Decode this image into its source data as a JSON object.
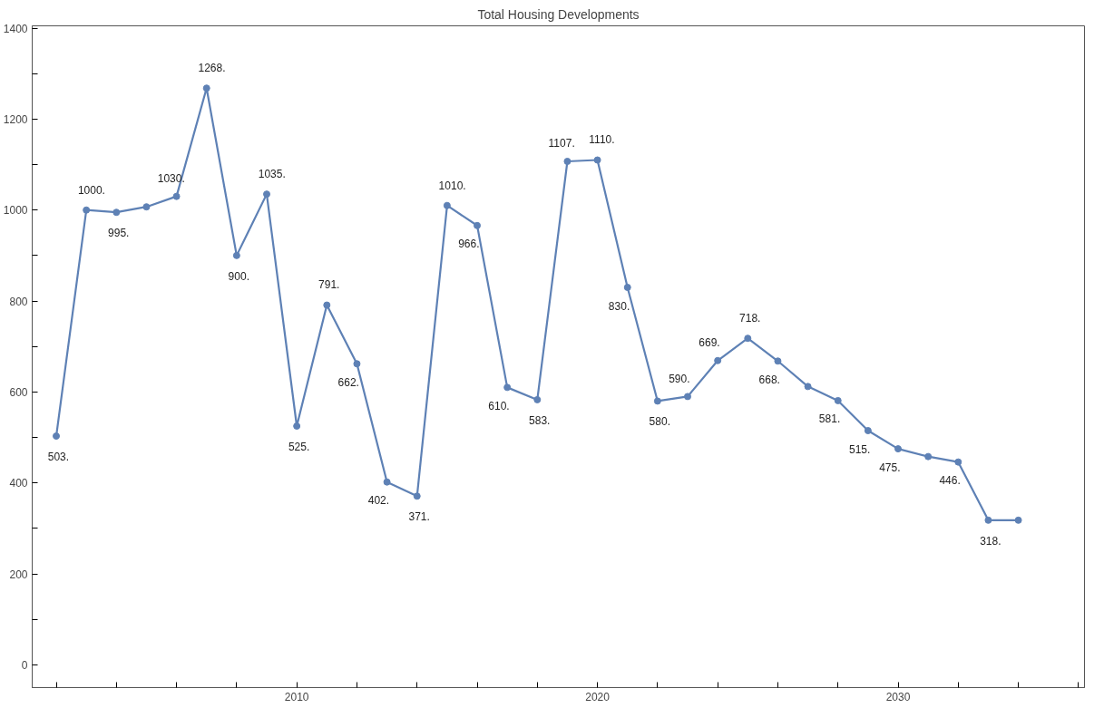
{
  "chart_data": {
    "type": "line",
    "title": "Total Housing Developments",
    "x": [
      2002,
      2003,
      2004,
      2005,
      2006,
      2007,
      2008,
      2009,
      2010,
      2011,
      2012,
      2013,
      2014,
      2015,
      2016,
      2017,
      2018,
      2019,
      2020,
      2021,
      2022,
      2023,
      2024,
      2025,
      2026,
      2027,
      2028,
      2029,
      2030,
      2031,
      2032,
      2033,
      2034
    ],
    "series": [
      {
        "color": "#5e81b5",
        "values": [
          503,
          1000,
          995,
          1007,
          1030,
          1268,
          900,
          1035,
          525,
          791,
          662,
          402,
          371,
          1010,
          966,
          610,
          583,
          1107,
          1110,
          830,
          580,
          590,
          669,
          718,
          668,
          612,
          581,
          515,
          475,
          458,
          446,
          318,
          318
        ],
        "value_labels": [
          "503.",
          "1000.",
          "995.",
          null,
          "1030.",
          "1268.",
          "900.",
          "1035.",
          "525.",
          "791.",
          "662.",
          "402.",
          "371.",
          "1010.",
          "966.",
          "610.",
          "583.",
          "1107.",
          "1110.",
          "830.",
          "580.",
          "590.",
          "669.",
          "718.",
          "668.",
          null,
          "581.",
          "515.",
          "475.",
          null,
          "446.",
          "318.",
          null
        ]
      }
    ],
    "xlim": [
      2001.2,
      2036.2
    ],
    "ylim": [
      -50,
      1405
    ],
    "xticks": [
      {
        "value": 2002,
        "label": null
      },
      {
        "value": 2004,
        "label": null
      },
      {
        "value": 2006,
        "label": null
      },
      {
        "value": 2008,
        "label": null
      },
      2010,
      {
        "value": 2012,
        "label": null
      },
      {
        "value": 2014,
        "label": null
      },
      {
        "value": 2016,
        "label": null
      },
      {
        "value": 2018,
        "label": null
      },
      2020,
      {
        "value": 2022,
        "label": null
      },
      {
        "value": 2024,
        "label": null
      },
      {
        "value": 2026,
        "label": null
      },
      {
        "value": 2028,
        "label": null
      },
      2030,
      {
        "value": 2032,
        "label": null
      },
      {
        "value": 2034,
        "label": null
      },
      {
        "value": 2036,
        "label": null
      }
    ],
    "yticks": [
      0,
      {
        "value": 100,
        "label": null
      },
      200,
      {
        "value": 300,
        "label": null
      },
      400,
      {
        "value": 500,
        "label": null
      },
      600,
      {
        "value": 700,
        "label": null
      },
      800,
      {
        "value": 900,
        "label": null
      },
      1000,
      {
        "value": 1100,
        "label": null
      },
      1200,
      {
        "value": 1300,
        "label": null
      },
      1400
    ],
    "grid": false,
    "marker": "circle",
    "line_style": "solid"
  }
}
